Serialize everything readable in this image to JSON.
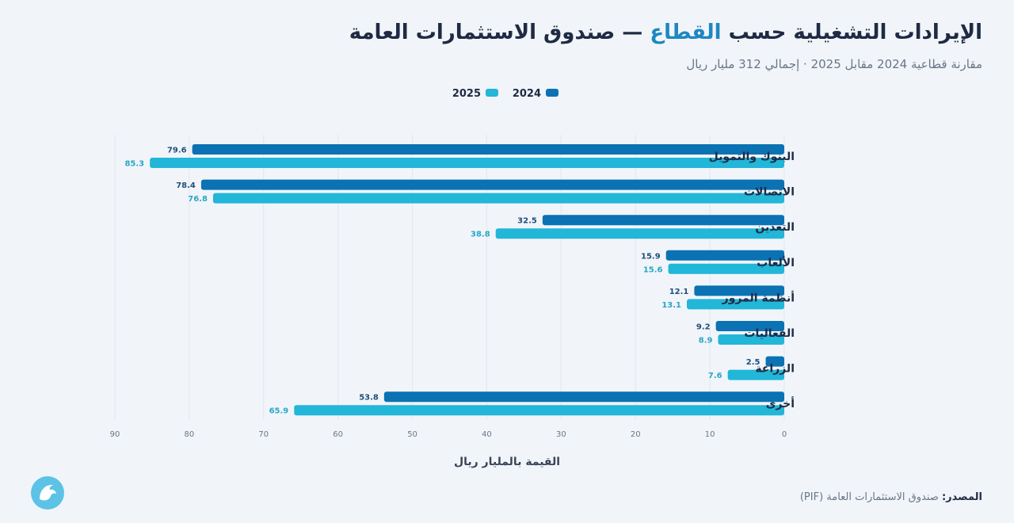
{
  "header": {
    "title_part1": "الإيرادات التشغيلية حسب",
    "title_highlight": "القطاع",
    "title_part2": "— صندوق الاستثمارات العامة",
    "subtitle": "مقارنة قطاعية 2024 مقابل 2025 · إجمالي 312 مليار ريال"
  },
  "footer": {
    "source_label": "المصدر:",
    "source_text": "صندوق الاستثمارات العامة (PIF)"
  },
  "colors": {
    "series_2024": "#0b72b3",
    "series_2025": "#22b6d8",
    "label_2024": "#1f4f7a",
    "label_2025": "#2aa6c8",
    "axis_text": "#6b7588",
    "grid": "#e2e7ee"
  },
  "icons": {
    "logo": "falcon-logo-icon"
  },
  "chart_data": {
    "type": "bar",
    "orientation": "horizontal",
    "categories": [
      "البنوك والتمويل",
      "الاتصالات",
      "التعدين",
      "الألعاب",
      "أنظمة المرور",
      "الفعاليات",
      "الزراعة",
      "أخرى"
    ],
    "series": [
      {
        "name": "2024",
        "values": [
          79.6,
          78.4,
          32.5,
          15.9,
          12.1,
          9.2,
          2.5,
          53.8
        ]
      },
      {
        "name": "2025",
        "values": [
          85.3,
          76.8,
          38.8,
          15.6,
          13.1,
          8.9,
          7.6,
          65.9
        ]
      }
    ],
    "xlabel": "القيمة بالمليار ريال",
    "xlim": [
      0,
      90
    ],
    "xticks": [
      0,
      10,
      20,
      30,
      40,
      50,
      60,
      70,
      80,
      90
    ],
    "legend_position": "top",
    "grid": true,
    "data_labels": true
  }
}
